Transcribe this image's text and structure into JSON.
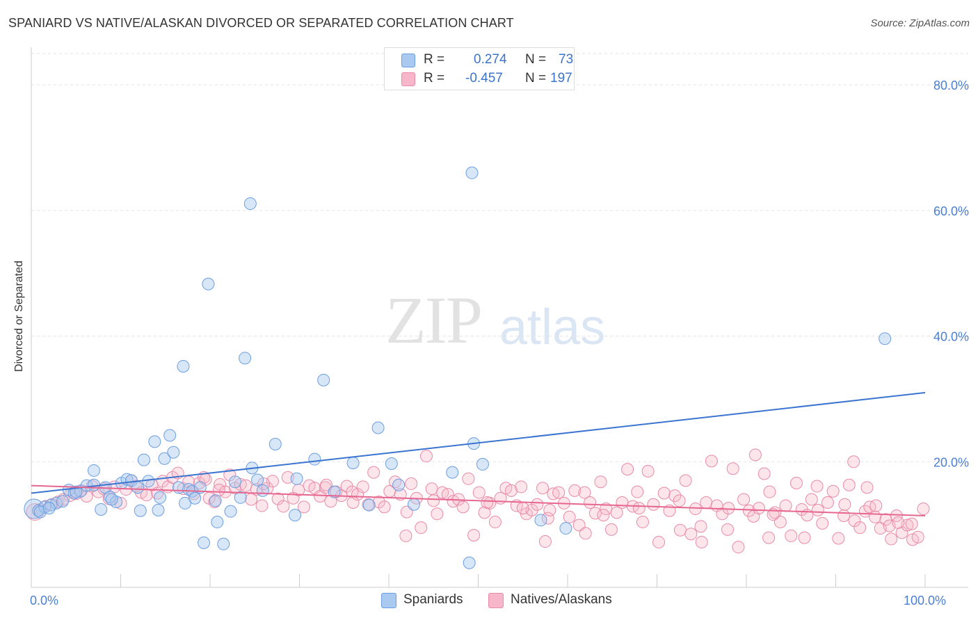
{
  "title": "SPANIARD VS NATIVE/ALASKAN DIVORCED OR SEPARATED CORRELATION CHART",
  "source": "Source: ZipAtlas.com",
  "watermark": {
    "zip": "ZIP",
    "atlas": "atlas"
  },
  "legend_top": {
    "rows": [
      {
        "r_label": "R =",
        "r_value": "0.274",
        "n_label": "N =",
        "n_value": "73",
        "color": "#a9c9f0",
        "border": "#6b9ee0"
      },
      {
        "r_label": "R =",
        "r_value": "-0.457",
        "n_label": "N =",
        "n_value": "197",
        "color": "#f7b6c9",
        "border": "#e98aa7"
      }
    ]
  },
  "legend_bottom": [
    {
      "label": "Spaniards",
      "color": "#a9c9f0",
      "border": "#6b9ee0"
    },
    {
      "label": "Natives/Alaskans",
      "color": "#f7b6c9",
      "border": "#e98aa7"
    }
  ],
  "chart_data": {
    "type": "scatter",
    "title": "SPANIARD VS NATIVE/ALASKAN DIVORCED OR SEPARATED CORRELATION CHART",
    "xlabel": "",
    "ylabel": "Divorced or Separated",
    "xlim": [
      0,
      100
    ],
    "ylim": [
      0,
      85
    ],
    "x_ticks": [
      {
        "v": 0,
        "label": "0.0%"
      },
      {
        "v": 100,
        "label": "100.0%"
      }
    ],
    "y_ticks": [
      {
        "v": 20,
        "label": "20.0%"
      },
      {
        "v": 40,
        "label": "40.0%"
      },
      {
        "v": 60,
        "label": "60.0%"
      },
      {
        "v": 80,
        "label": "80.0%"
      }
    ],
    "grid": true,
    "legend": "top-center",
    "series": [
      {
        "name": "Spaniards",
        "color": "#7aa8e6",
        "trend": {
          "x": [
            0,
            100
          ],
          "y": [
            15.0,
            31.0
          ],
          "color": "#3a74d0"
        },
        "points": [
          [
            0.3,
            12.5
          ],
          [
            0.8,
            12.2
          ],
          [
            1.5,
            12.8
          ],
          [
            2.2,
            13.1
          ],
          [
            2.8,
            13.4
          ],
          [
            3.5,
            13.7
          ],
          [
            4.2,
            15.5
          ],
          [
            4.8,
            15.0
          ],
          [
            5.5,
            15.3
          ],
          [
            6.2,
            16.2
          ],
          [
            7.0,
            16.3
          ],
          [
            7.0,
            18.6
          ],
          [
            7.8,
            12.4
          ],
          [
            8.3,
            15.9
          ],
          [
            8.8,
            14.4
          ],
          [
            9.5,
            13.6
          ],
          [
            10.1,
            16.6
          ],
          [
            10.7,
            17.2
          ],
          [
            11.2,
            17.0
          ],
          [
            11.9,
            15.9
          ],
          [
            12.2,
            12.2
          ],
          [
            12.6,
            20.3
          ],
          [
            13.1,
            16.9
          ],
          [
            13.8,
            23.2
          ],
          [
            14.2,
            12.3
          ],
          [
            14.4,
            14.3
          ],
          [
            14.9,
            20.5
          ],
          [
            15.5,
            24.2
          ],
          [
            15.9,
            21.5
          ],
          [
            16.5,
            15.9
          ],
          [
            17.0,
            35.2
          ],
          [
            17.2,
            13.4
          ],
          [
            17.6,
            15.6
          ],
          [
            18.0,
            15.3
          ],
          [
            18.3,
            14.2
          ],
          [
            18.9,
            15.9
          ],
          [
            19.3,
            7.1
          ],
          [
            19.8,
            48.3
          ],
          [
            20.6,
            13.8
          ],
          [
            20.8,
            10.4
          ],
          [
            21.5,
            6.9
          ],
          [
            22.3,
            12.1
          ],
          [
            22.8,
            16.8
          ],
          [
            23.4,
            14.3
          ],
          [
            23.9,
            36.5
          ],
          [
            24.5,
            61.1
          ],
          [
            24.7,
            19.0
          ],
          [
            25.3,
            17.1
          ],
          [
            25.9,
            15.4
          ],
          [
            27.3,
            22.8
          ],
          [
            29.5,
            11.5
          ],
          [
            29.7,
            17.3
          ],
          [
            31.7,
            20.4
          ],
          [
            32.7,
            33.0
          ],
          [
            33.9,
            15.2
          ],
          [
            36.0,
            19.8
          ],
          [
            37.8,
            13.1
          ],
          [
            38.8,
            25.4
          ],
          [
            40.3,
            19.7
          ],
          [
            41.1,
            16.3
          ],
          [
            42.8,
            13.2
          ],
          [
            47.1,
            18.3
          ],
          [
            49.3,
            66.0
          ],
          [
            49.5,
            22.9
          ],
          [
            50.5,
            19.6
          ],
          [
            49.0,
            3.9
          ],
          [
            57.0,
            10.7
          ],
          [
            59.8,
            9.4
          ],
          [
            95.5,
            39.6
          ],
          [
            1.0,
            12.0
          ],
          [
            2.0,
            12.6
          ],
          [
            5.0,
            15.2
          ],
          [
            9.0,
            14.0
          ]
        ]
      },
      {
        "name": "Natives/Alaskans",
        "color": "#f29ab4",
        "trend": {
          "x": [
            0,
            100
          ],
          "y": [
            16.2,
            11.4
          ],
          "color": "#e7668f"
        },
        "points": [
          [
            0.4,
            12.0
          ],
          [
            1.0,
            12.4
          ],
          [
            1.6,
            12.9
          ],
          [
            2.3,
            13.2
          ],
          [
            3.0,
            13.6
          ],
          [
            3.6,
            14.0
          ],
          [
            4.3,
            14.6
          ],
          [
            5.0,
            14.9
          ],
          [
            5.6,
            15.4
          ],
          [
            6.2,
            14.5
          ],
          [
            6.8,
            16.1
          ],
          [
            7.5,
            15.2
          ],
          [
            8.1,
            15.7
          ],
          [
            8.7,
            14.1
          ],
          [
            9.3,
            16.0
          ],
          [
            10.0,
            13.4
          ],
          [
            10.6,
            15.6
          ],
          [
            11.2,
            17.0
          ],
          [
            11.7,
            16.1
          ],
          [
            12.3,
            15.1
          ],
          [
            12.9,
            14.7
          ],
          [
            13.5,
            16.3
          ],
          [
            14.1,
            15.0
          ],
          [
            14.7,
            16.9
          ],
          [
            15.3,
            16.0
          ],
          [
            15.8,
            17.5
          ],
          [
            16.4,
            18.2
          ],
          [
            17.0,
            15.7
          ],
          [
            17.6,
            16.8
          ],
          [
            18.2,
            14.9
          ],
          [
            18.8,
            16.6
          ],
          [
            19.3,
            17.5
          ],
          [
            19.9,
            14.2
          ],
          [
            20.5,
            13.6
          ],
          [
            21.1,
            16.4
          ],
          [
            21.7,
            15.2
          ],
          [
            22.2,
            17.9
          ],
          [
            22.8,
            15.8
          ],
          [
            23.4,
            16.4
          ],
          [
            24.0,
            16.2
          ],
          [
            24.6,
            14.0
          ],
          [
            25.2,
            15.6
          ],
          [
            25.8,
            13.0
          ],
          [
            26.4,
            15.8
          ],
          [
            27.0,
            16.9
          ],
          [
            27.6,
            14.1
          ],
          [
            28.2,
            12.9
          ],
          [
            28.7,
            17.5
          ],
          [
            29.3,
            14.2
          ],
          [
            29.9,
            15.5
          ],
          [
            30.5,
            12.8
          ],
          [
            31.1,
            16.2
          ],
          [
            31.7,
            15.8
          ],
          [
            32.3,
            14.5
          ],
          [
            32.9,
            15.9
          ],
          [
            33.5,
            13.7
          ],
          [
            34.1,
            15.2
          ],
          [
            34.7,
            14.6
          ],
          [
            35.3,
            16.1
          ],
          [
            35.9,
            15.2
          ],
          [
            36.5,
            14.8
          ],
          [
            37.1,
            16.0
          ],
          [
            37.7,
            13.2
          ],
          [
            38.3,
            18.3
          ],
          [
            38.9,
            13.6
          ],
          [
            39.5,
            12.8
          ],
          [
            40.1,
            15.3
          ],
          [
            40.7,
            16.8
          ],
          [
            41.3,
            14.8
          ],
          [
            41.9,
            8.2
          ],
          [
            42.5,
            16.5
          ],
          [
            43.1,
            14.2
          ],
          [
            43.6,
            9.5
          ],
          [
            44.2,
            20.9
          ],
          [
            44.8,
            15.7
          ],
          [
            45.4,
            11.7
          ],
          [
            46.0,
            15.1
          ],
          [
            46.6,
            14.8
          ],
          [
            47.2,
            13.7
          ],
          [
            47.8,
            14.0
          ],
          [
            48.3,
            12.8
          ],
          [
            48.9,
            17.3
          ],
          [
            49.5,
            8.3
          ],
          [
            50.1,
            15.1
          ],
          [
            50.7,
            11.9
          ],
          [
            51.3,
            13.4
          ],
          [
            51.9,
            10.4
          ],
          [
            52.5,
            14.2
          ],
          [
            53.1,
            15.8
          ],
          [
            53.7,
            15.4
          ],
          [
            54.3,
            13.0
          ],
          [
            54.8,
            16.0
          ],
          [
            55.4,
            11.7
          ],
          [
            56.0,
            12.3
          ],
          [
            56.6,
            13.2
          ],
          [
            57.2,
            15.8
          ],
          [
            57.8,
            11.0
          ],
          [
            58.4,
            14.9
          ],
          [
            59.0,
            15.1
          ],
          [
            59.6,
            13.4
          ],
          [
            60.2,
            11.2
          ],
          [
            60.8,
            15.4
          ],
          [
            61.3,
            9.9
          ],
          [
            61.9,
            15.1
          ],
          [
            62.5,
            13.5
          ],
          [
            63.1,
            11.8
          ],
          [
            63.7,
            16.8
          ],
          [
            64.3,
            12.5
          ],
          [
            64.9,
            9.2
          ],
          [
            65.5,
            11.9
          ],
          [
            66.1,
            13.5
          ],
          [
            66.7,
            18.8
          ],
          [
            67.3,
            12.9
          ],
          [
            67.8,
            15.2
          ],
          [
            68.4,
            10.4
          ],
          [
            69.0,
            18.5
          ],
          [
            69.6,
            13.2
          ],
          [
            70.2,
            7.2
          ],
          [
            70.8,
            15.0
          ],
          [
            71.4,
            12.2
          ],
          [
            72.0,
            14.6
          ],
          [
            72.6,
            9.1
          ],
          [
            73.2,
            17.0
          ],
          [
            73.8,
            8.5
          ],
          [
            74.3,
            12.5
          ],
          [
            74.9,
            9.7
          ],
          [
            75.5,
            13.5
          ],
          [
            76.1,
            20.1
          ],
          [
            76.7,
            13.0
          ],
          [
            77.3,
            11.7
          ],
          [
            77.9,
            9.2
          ],
          [
            78.5,
            18.9
          ],
          [
            79.1,
            6.4
          ],
          [
            79.7,
            14.0
          ],
          [
            80.3,
            12.2
          ],
          [
            80.8,
            11.3
          ],
          [
            81.4,
            12.6
          ],
          [
            82.0,
            18.1
          ],
          [
            82.6,
            15.2
          ],
          [
            83.2,
            11.9
          ],
          [
            83.8,
            10.4
          ],
          [
            84.4,
            13.0
          ],
          [
            85.0,
            8.2
          ],
          [
            85.6,
            16.6
          ],
          [
            86.2,
            12.4
          ],
          [
            86.8,
            11.5
          ],
          [
            87.3,
            14.0
          ],
          [
            87.9,
            16.1
          ],
          [
            88.5,
            10.2
          ],
          [
            89.1,
            13.5
          ],
          [
            89.7,
            15.3
          ],
          [
            90.3,
            7.8
          ],
          [
            90.9,
            11.4
          ],
          [
            91.5,
            16.3
          ],
          [
            92.1,
            10.6
          ],
          [
            92.7,
            9.5
          ],
          [
            93.3,
            12.1
          ],
          [
            93.8,
            12.8
          ],
          [
            94.4,
            11.2
          ],
          [
            95.0,
            9.4
          ],
          [
            95.6,
            10.8
          ],
          [
            96.2,
            7.7
          ],
          [
            96.8,
            11.4
          ],
          [
            97.4,
            8.7
          ],
          [
            98.0,
            9.9
          ],
          [
            98.6,
            7.6
          ],
          [
            99.2,
            8.0
          ],
          [
            99.8,
            12.5
          ],
          [
            19.5,
            17.2
          ],
          [
            21.0,
            15.5
          ],
          [
            26.0,
            16.5
          ],
          [
            33.0,
            16.3
          ],
          [
            36.0,
            13.5
          ],
          [
            45.0,
            13.8
          ],
          [
            51.0,
            13.5
          ],
          [
            55.0,
            12.6
          ],
          [
            58.0,
            12.3
          ],
          [
            64.0,
            11.5
          ],
          [
            68.0,
            12.6
          ],
          [
            72.5,
            13.8
          ],
          [
            78.0,
            12.6
          ],
          [
            81.0,
            21.1
          ],
          [
            83.0,
            11.6
          ],
          [
            88.0,
            12.3
          ],
          [
            91.0,
            13.2
          ],
          [
            92.0,
            20.0
          ],
          [
            94.5,
            13.0
          ],
          [
            96.0,
            9.8
          ],
          [
            97.0,
            10.3
          ],
          [
            98.5,
            10.1
          ],
          [
            93.5,
            15.9
          ],
          [
            86.5,
            7.9
          ],
          [
            82.5,
            7.9
          ],
          [
            75.0,
            7.2
          ],
          [
            62.0,
            8.6
          ],
          [
            57.5,
            7.3
          ],
          [
            42.0,
            12.0
          ]
        ]
      }
    ]
  }
}
